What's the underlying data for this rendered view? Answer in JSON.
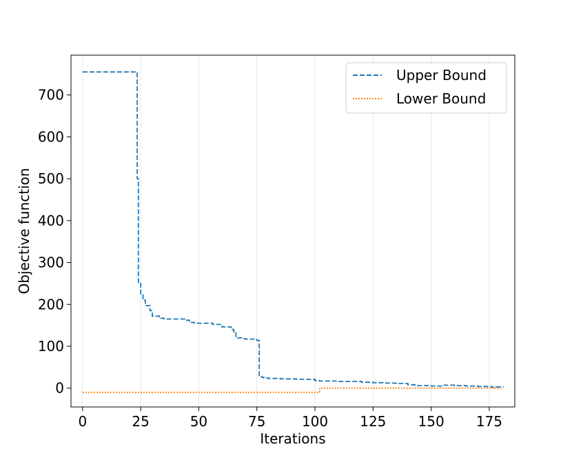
{
  "chart_data": {
    "type": "line",
    "title": "",
    "xlabel": "Iterations",
    "ylabel": "Objective function",
    "xlim": [
      -5,
      186
    ],
    "ylim": [
      -45,
      795
    ],
    "xticks": [
      0,
      25,
      50,
      75,
      100,
      125,
      150,
      175
    ],
    "xtick_labels": [
      "0",
      "25",
      "50",
      "75",
      "100",
      "125",
      "150",
      "175"
    ],
    "yticks": [
      0,
      100,
      200,
      300,
      400,
      500,
      600,
      700
    ],
    "ytick_labels": [
      "0",
      "100",
      "200",
      "300",
      "400",
      "500",
      "600",
      "700"
    ],
    "grid": "x",
    "legend_position": "top-right",
    "series": [
      {
        "name": "Upper Bound",
        "color": "#1f77b4",
        "style": "dashed",
        "step": true,
        "x": [
          0,
          23,
          23.5,
          24,
          25,
          26,
          27,
          28,
          29,
          30,
          31,
          33,
          35,
          40,
          44,
          46,
          48,
          54,
          56,
          60,
          62,
          64,
          65,
          66,
          69,
          70,
          75,
          76,
          77,
          78,
          80,
          85,
          92,
          100,
          102,
          110,
          117,
          120,
          125,
          130,
          135,
          140,
          143,
          148,
          150,
          155,
          160,
          165,
          170,
          175,
          176,
          178,
          181
        ],
        "y": [
          755,
          755,
          500,
          250,
          225,
          210,
          197,
          197,
          185,
          172,
          172,
          167,
          165,
          165,
          162,
          157,
          155,
          155,
          152,
          146,
          146,
          140,
          135,
          120,
          118,
          117,
          114,
          30,
          26,
          24,
          23,
          22,
          21,
          18,
          17,
          16,
          16,
          14,
          13,
          12,
          11,
          8,
          6,
          6,
          5,
          7,
          6,
          5,
          4,
          4,
          2,
          3,
          2
        ]
      },
      {
        "name": "Lower Bound",
        "color": "#ff7f0e",
        "style": "dotted",
        "step": true,
        "x": [
          0,
          101,
          102,
          181
        ],
        "y": [
          -10,
          -10,
          0,
          0
        ]
      }
    ]
  }
}
